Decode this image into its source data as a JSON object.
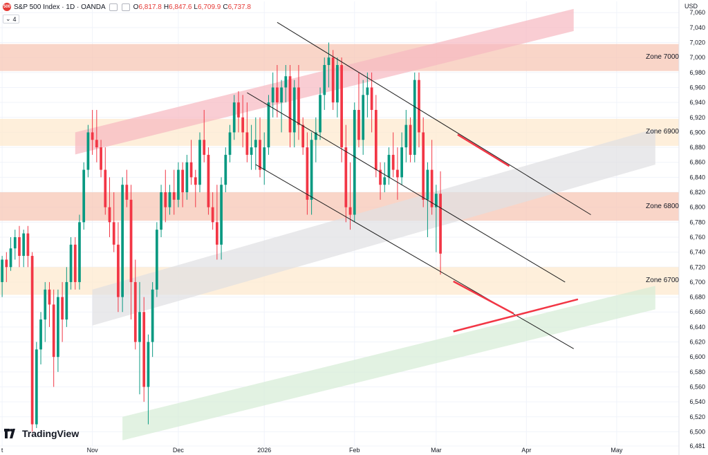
{
  "header": {
    "symbol_badge": "500",
    "title": "S&P 500 Index · 1D · OANDA",
    "ohlc": [
      {
        "k": "O",
        "v": "6,817.8"
      },
      {
        "k": "H",
        "v": "6,847.6"
      },
      {
        "k": "L",
        "v": "6,709.9"
      },
      {
        "k": "C",
        "v": "6,737.8"
      }
    ],
    "layers_count": "4"
  },
  "currency": "USD",
  "brand": "TradingView",
  "colors": {
    "up": "#089981",
    "down": "#f23645",
    "grid": "#f0f3fa",
    "line": "#1e1e1e",
    "red_line": "#f23645"
  },
  "chart_data": {
    "type": "candlestick",
    "y_ticks": [
      7060,
      7040,
      7020,
      7000,
      6980,
      6960,
      6940,
      6920,
      6900,
      6880,
      6860,
      6840,
      6820,
      6800,
      6780,
      6760,
      6740,
      6720,
      6700,
      6680,
      6660,
      6640,
      6620,
      6600,
      6580,
      6560,
      6540,
      6520,
      6500,
      6481
    ],
    "ylim": [
      6481,
      7075
    ],
    "x_labels": [
      {
        "label": "t",
        "index": 0
      },
      {
        "label": "Nov",
        "index": 21
      },
      {
        "label": "Dec",
        "index": 41
      },
      {
        "label": "2026",
        "index": 61
      },
      {
        "label": "Feb",
        "index": 82
      },
      {
        "label": "Mar",
        "index": 101
      },
      {
        "label": "Apr",
        "index": 122
      },
      {
        "label": "May",
        "index": 143
      }
    ],
    "x_count": 158,
    "zones": [
      {
        "name": "Zone 7000",
        "low": 6982,
        "high": 7018,
        "color": "#f7c7b6"
      },
      {
        "name": "Zone 6900",
        "low": 6882,
        "high": 6918,
        "color": "#fde9cf"
      },
      {
        "name": "Zone 6800",
        "low": 6782,
        "high": 6820,
        "color": "#f7c7b6"
      },
      {
        "name": "Zone 6700",
        "low": 6683,
        "high": 6720,
        "color": "#fde9cf"
      }
    ],
    "channels": [
      {
        "color": "#f6b8c0",
        "start": [
          17,
          6900
        ],
        "end": [
          133,
          7065
        ],
        "width": 32
      },
      {
        "color": "#dfdfe3",
        "start": [
          21,
          6690
        ],
        "end": [
          152,
          6905
        ],
        "width": 52
      },
      {
        "color": "#d6ecd6",
        "start": [
          28,
          6520
        ],
        "end": [
          152,
          6695
        ],
        "width": 34
      }
    ],
    "lines": [
      {
        "start": [
          64,
          7047
        ],
        "end": [
          137,
          6790
        ]
      },
      {
        "start": [
          57,
          6953
        ],
        "end": [
          131,
          6700
        ]
      },
      {
        "start": [
          59,
          6857
        ],
        "end": [
          133,
          6611
        ]
      }
    ],
    "red_lines": [
      {
        "start": [
          106,
          6897
        ],
        "end": [
          118,
          6855
        ]
      },
      {
        "start": [
          105,
          6701
        ],
        "end": [
          119,
          6658
        ]
      },
      {
        "start": [
          105,
          6634
        ],
        "end": [
          134,
          6677
        ]
      }
    ],
    "ohlc": [
      [
        6700,
        6735,
        6680,
        6730
      ],
      [
        6730,
        6740,
        6700,
        6720
      ],
      [
        6720,
        6760,
        6715,
        6745
      ],
      [
        6745,
        6770,
        6730,
        6760
      ],
      [
        6760,
        6775,
        6720,
        6735
      ],
      [
        6735,
        6770,
        6720,
        6765
      ],
      [
        6765,
        6775,
        6720,
        6735
      ],
      [
        6735,
        6740,
        6500,
        6510
      ],
      [
        6510,
        6620,
        6505,
        6610
      ],
      [
        6610,
        6660,
        6590,
        6650
      ],
      [
        6650,
        6700,
        6620,
        6690
      ],
      [
        6690,
        6700,
        6640,
        6670
      ],
      [
        6670,
        6690,
        6560,
        6600
      ],
      [
        6600,
        6690,
        6580,
        6680
      ],
      [
        6680,
        6700,
        6620,
        6650
      ],
      [
        6650,
        6720,
        6640,
        6700
      ],
      [
        6700,
        6760,
        6690,
        6750
      ],
      [
        6750,
        6760,
        6690,
        6700
      ],
      [
        6700,
        6790,
        6690,
        6780
      ],
      [
        6780,
        6860,
        6770,
        6850
      ],
      [
        6850,
        6910,
        6840,
        6900
      ],
      [
        6900,
        6930,
        6870,
        6890
      ],
      [
        6890,
        6930,
        6860,
        6880
      ],
      [
        6880,
        6890,
        6840,
        6850
      ],
      [
        6850,
        6880,
        6790,
        6800
      ],
      [
        6800,
        6840,
        6760,
        6780
      ],
      [
        6780,
        6820,
        6740,
        6750
      ],
      [
        6750,
        6780,
        6660,
        6680
      ],
      [
        6680,
        6840,
        6660,
        6830
      ],
      [
        6830,
        6850,
        6800,
        6810
      ],
      [
        6810,
        6830,
        6650,
        6700
      ],
      [
        6700,
        6730,
        6610,
        6620
      ],
      [
        6620,
        6700,
        6550,
        6660
      ],
      [
        6660,
        6680,
        6540,
        6560
      ],
      [
        6560,
        6630,
        6510,
        6620
      ],
      [
        6620,
        6700,
        6600,
        6690
      ],
      [
        6690,
        6780,
        6680,
        6770
      ],
      [
        6770,
        6830,
        6760,
        6820
      ],
      [
        6820,
        6850,
        6780,
        6800
      ],
      [
        6800,
        6830,
        6790,
        6820
      ],
      [
        6820,
        6850,
        6790,
        6810
      ],
      [
        6810,
        6860,
        6800,
        6850
      ],
      [
        6850,
        6860,
        6800,
        6820
      ],
      [
        6820,
        6870,
        6810,
        6860
      ],
      [
        6860,
        6890,
        6830,
        6840
      ],
      [
        6840,
        6850,
        6800,
        6830
      ],
      [
        6830,
        6900,
        6820,
        6890
      ],
      [
        6890,
        6930,
        6860,
        6870
      ],
      [
        6870,
        6880,
        6790,
        6800
      ],
      [
        6800,
        6820,
        6770,
        6780
      ],
      [
        6780,
        6830,
        6730,
        6750
      ],
      [
        6750,
        6840,
        6730,
        6830
      ],
      [
        6830,
        6880,
        6820,
        6870
      ],
      [
        6870,
        6910,
        6860,
        6900
      ],
      [
        6900,
        6950,
        6890,
        6940
      ],
      [
        6940,
        6955,
        6900,
        6920
      ],
      [
        6920,
        6950,
        6880,
        6900
      ],
      [
        6900,
        6940,
        6860,
        6870
      ],
      [
        6870,
        6910,
        6850,
        6880
      ],
      [
        6880,
        6920,
        6850,
        6890
      ],
      [
        6890,
        6920,
        6840,
        6850
      ],
      [
        6850,
        6900,
        6830,
        6880
      ],
      [
        6880,
        6950,
        6870,
        6940
      ],
      [
        6940,
        6980,
        6920,
        6960
      ],
      [
        6960,
        6990,
        6920,
        6940
      ],
      [
        6940,
        6970,
        6900,
        6960
      ],
      [
        6960,
        6990,
        6940,
        6975
      ],
      [
        6975,
        6990,
        6880,
        6900
      ],
      [
        6900,
        6970,
        6880,
        6960
      ],
      [
        6960,
        6990,
        6890,
        6910
      ],
      [
        6910,
        6920,
        6870,
        6880
      ],
      [
        6880,
        6900,
        6790,
        6810
      ],
      [
        6810,
        6900,
        6790,
        6890
      ],
      [
        6890,
        6920,
        6860,
        6900
      ],
      [
        6900,
        6960,
        6890,
        6950
      ],
      [
        6950,
        7000,
        6930,
        6990
      ],
      [
        6990,
        7020,
        6960,
        7000
      ],
      [
        7000,
        7010,
        6930,
        6940
      ],
      [
        6940,
        7000,
        6920,
        6990
      ],
      [
        6990,
        7000,
        6860,
        6880
      ],
      [
        6880,
        6910,
        6780,
        6800
      ],
      [
        6800,
        6860,
        6770,
        6790
      ],
      [
        6790,
        6940,
        6780,
        6930
      ],
      [
        6930,
        6980,
        6880,
        6890
      ],
      [
        6890,
        6970,
        6870,
        6950
      ],
      [
        6950,
        6980,
        6920,
        6960
      ],
      [
        6960,
        6980,
        6900,
        6930
      ],
      [
        6930,
        6950,
        6840,
        6850
      ],
      [
        6850,
        6860,
        6810,
        6830
      ],
      [
        6830,
        6860,
        6820,
        6840
      ],
      [
        6840,
        6880,
        6830,
        6870
      ],
      [
        6870,
        6900,
        6840,
        6850
      ],
      [
        6850,
        6880,
        6810,
        6840
      ],
      [
        6840,
        6900,
        6830,
        6880
      ],
      [
        6880,
        6930,
        6860,
        6910
      ],
      [
        6910,
        6920,
        6860,
        6870
      ],
      [
        6870,
        6980,
        6860,
        6970
      ],
      [
        6970,
        6980,
        6880,
        6900
      ],
      [
        6900,
        6920,
        6800,
        6810
      ],
      [
        6810,
        6860,
        6760,
        6850
      ],
      [
        6850,
        6890,
        6790,
        6800
      ],
      [
        6800,
        6830,
        6740,
        6818
      ],
      [
        6818,
        6848,
        6710,
        6738
      ]
    ]
  }
}
